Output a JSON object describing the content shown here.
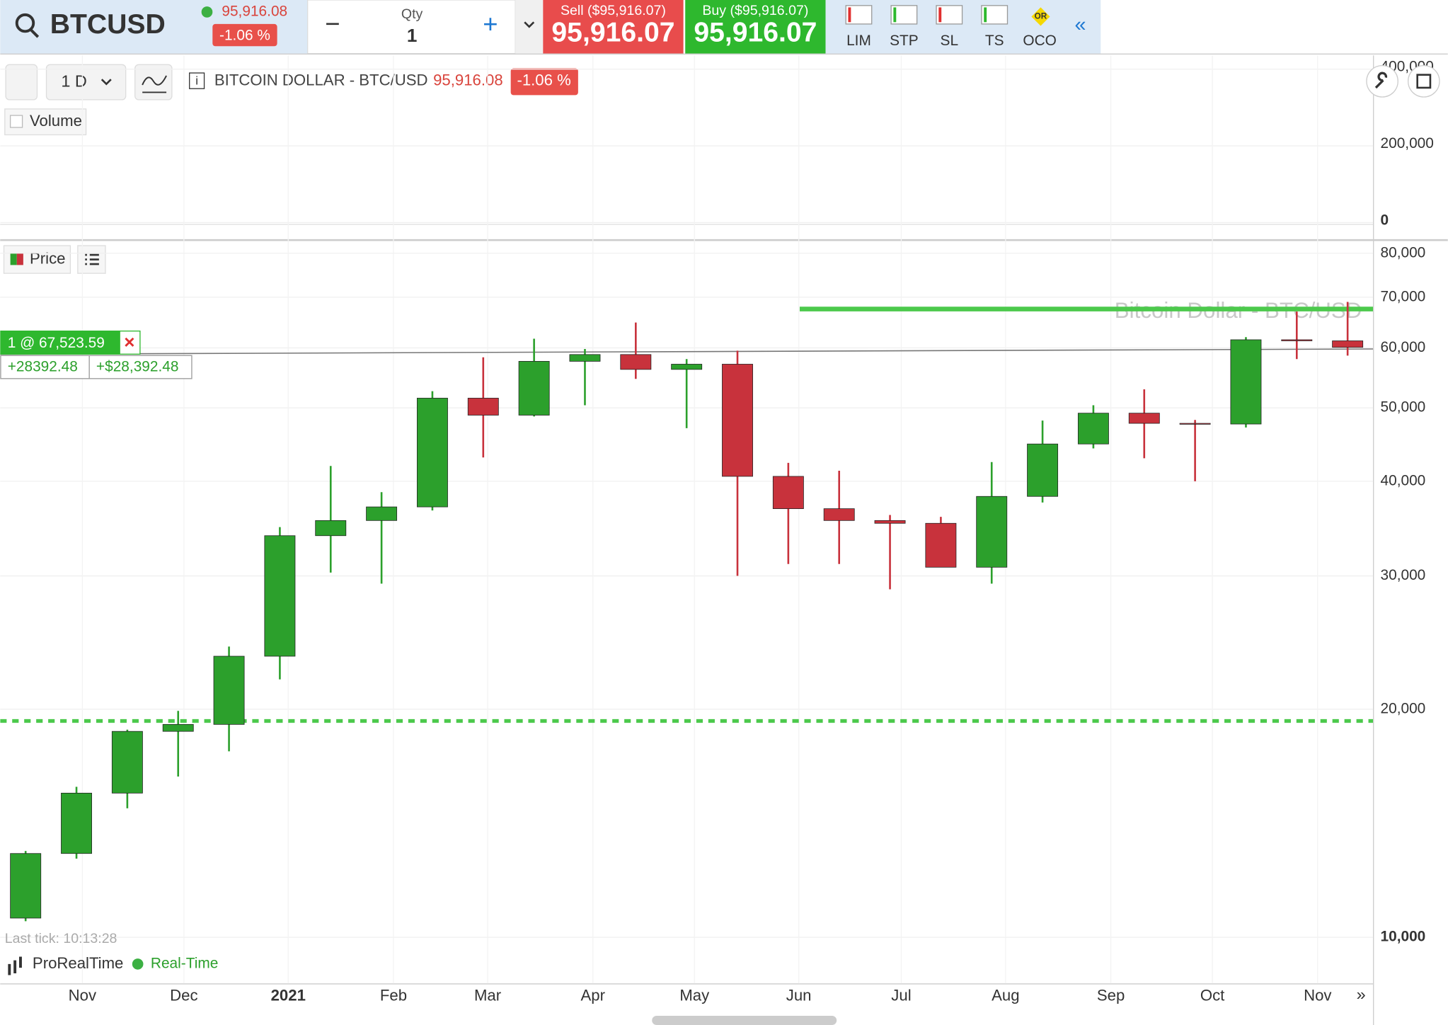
{
  "header": {
    "symbol": "BTCUSD",
    "last": "95,916.08",
    "change": "-1.06 %",
    "qty_label": "Qty",
    "qty": "1",
    "sell_label": "Sell ($95,916.07)",
    "sell": "95,916.07",
    "buy_label": "Buy ($95,916.07)",
    "buy": "95,916.07",
    "order_types": [
      "LIM",
      "STP",
      "SL",
      "TS",
      "OCO"
    ],
    "oco_badge": "OR"
  },
  "toolbar": {
    "period": "1 D",
    "instrument": "BITCOIN DOLLAR - BTC/USD",
    "last": "95,916.08",
    "change": "-1.06 %",
    "volume": "Volume",
    "price": "Price"
  },
  "position": {
    "label": "1 @ 67,523.59",
    "pnl": "+28392.48",
    "pnl_money": "+$28,392.48"
  },
  "footer": {
    "last_tick": "Last tick: 10:13:28",
    "brand": "ProRealTime",
    "feed": "Real-Time"
  },
  "chart_data": {
    "type": "candlestick",
    "watermark": "Bitcoin Dollar - BTC/USD",
    "log_scale": true,
    "up_color": "#2ca02c",
    "down_color": "#c8323c",
    "open": [
      10600,
      12900,
      15500,
      18700,
      19100,
      23500,
      33900,
      35500,
      37000,
      51500,
      48900,
      57600,
      58800,
      56200,
      57100,
      40600,
      36800,
      35500,
      35200,
      30800,
      38200,
      44800,
      49200,
      47700,
      47600,
      61500,
      61300
    ],
    "high": [
      13000,
      15800,
      18800,
      19900,
      24200,
      34800,
      41900,
      38700,
      52600,
      58300,
      61700,
      59800,
      64800,
      58000,
      59500,
      42300,
      41300,
      36100,
      35900,
      42400,
      48100,
      50400,
      52900,
      48200,
      62000,
      67000,
      69000
    ],
    "low": [
      10500,
      12700,
      14800,
      16300,
      17600,
      21900,
      30300,
      29300,
      36600,
      43000,
      48700,
      50400,
      54600,
      47000,
      30000,
      31100,
      31100,
      28800,
      31100,
      29300,
      37500,
      44200,
      42900,
      40000,
      47100,
      58000,
      58600
    ],
    "close": [
      12900,
      15500,
      18700,
      19100,
      23500,
      33900,
      35500,
      37000,
      51500,
      48900,
      57600,
      58800,
      56200,
      57100,
      40600,
      36800,
      35500,
      35200,
      30800,
      38200,
      44800,
      49200,
      47700,
      47600,
      61500,
      61300,
      60100
    ],
    "x_labels": [
      "Nov",
      "Dec",
      "2021",
      "Feb",
      "Mar",
      "Apr",
      "May",
      "Jun",
      "Jul",
      "Aug",
      "Sep",
      "Oct",
      "Nov"
    ],
    "ylim": [
      8690,
      82800
    ],
    "yticks": [
      {
        "value": 10000,
        "label": "10,000"
      },
      {
        "value": 20000,
        "label": "20,000"
      },
      {
        "value": 30000,
        "label": "30,000"
      },
      {
        "value": 40000,
        "label": "40,000"
      },
      {
        "value": 50000,
        "label": "50,000"
      },
      {
        "value": 60000,
        "label": "60,000"
      },
      {
        "value": 70000,
        "label": "70,000"
      },
      {
        "value": 80000,
        "label": "80,000"
      }
    ],
    "order_level": 67523.59,
    "order_color": "#4cc94c",
    "stop_level": 19300,
    "trend_line": [
      58850,
      59800
    ],
    "volume_ylim": [
      0,
      436000
    ],
    "volume_yticks": [
      0,
      {
        "value": 200000,
        "label": "200,000"
      },
      {
        "value": 400000,
        "label": "400,000"
      }
    ]
  }
}
